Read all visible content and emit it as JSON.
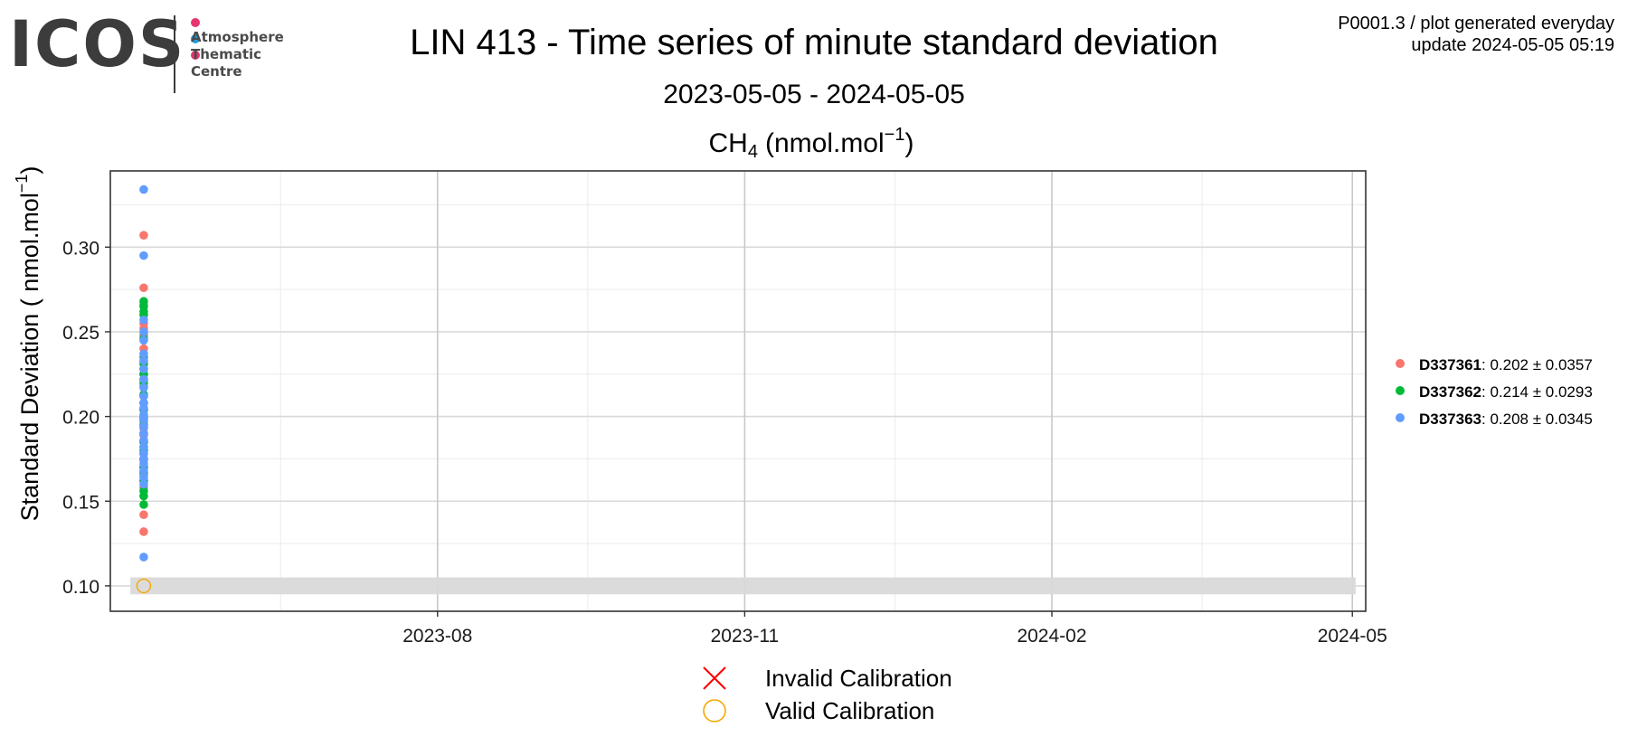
{
  "logo": {
    "wordmark": "ICOS",
    "lines": [
      "Atmosphere",
      "Thematic",
      "Centre"
    ],
    "dot_colors": [
      "#e8336d",
      "#1e9be0",
      "#e8336d"
    ]
  },
  "header": {
    "title": "LIN 413 - Time series of minute standard deviation",
    "subtitle": "2023-05-05 - 2024-05-05",
    "meta_line1": "P0001.3 / plot generated everyday",
    "meta_line2": "update  2024-05-05 05:19"
  },
  "chart_data": {
    "type": "scatter",
    "title_main": "CH",
    "title_sub": "4",
    "title_unit": "(nmol.mol",
    "title_sup": "−1",
    "title_close": ")",
    "ylabel_main": "Standard Deviation ( nmol.mol",
    "ylabel_sup": "−1",
    "ylabel_close": ")",
    "xlim": [
      "2023-04-25",
      "2024-05-05"
    ],
    "ylim": [
      0.085,
      0.345
    ],
    "x_ticks": [
      {
        "date": "2023-08-01",
        "label": "2023-08"
      },
      {
        "date": "2023-11-01",
        "label": "2023-11"
      },
      {
        "date": "2024-02-01",
        "label": "2024-02"
      },
      {
        "date": "2024-05-01",
        "label": "2024-05"
      }
    ],
    "x_minor_ticks": [
      "2023-06-15",
      "2023-09-15",
      "2023-12-16",
      "2024-03-17"
    ],
    "y_ticks": [
      0.1,
      0.15,
      0.2,
      0.25,
      0.3
    ],
    "y_tick_labels": [
      "0.10",
      "0.15",
      "0.20",
      "0.25",
      "0.30"
    ],
    "grid": true,
    "legend_position": "right",
    "band": {
      "ymin": 0.095,
      "ymax": 0.105,
      "xmin": "2023-04-25",
      "xmax": "2024-05-05",
      "color": "#d9d9d9"
    },
    "series": [
      {
        "name": "D337361",
        "stats": ": 0.202 ± 0.0357",
        "color": "#f8766d",
        "x": "2023-05-05",
        "values": [
          0.307,
          0.276,
          0.266,
          0.255,
          0.252,
          0.248,
          0.24,
          0.232,
          0.225,
          0.218,
          0.212,
          0.208,
          0.204,
          0.2,
          0.197,
          0.193,
          0.189,
          0.185,
          0.182,
          0.178,
          0.174,
          0.17,
          0.167,
          0.165,
          0.162,
          0.158,
          0.142,
          0.132
        ]
      },
      {
        "name": "D337362",
        "stats": ": 0.214 ± 0.0293",
        "color": "#00ba38",
        "x": "2023-05-05",
        "values": [
          0.268,
          0.265,
          0.262,
          0.26,
          0.246,
          0.235,
          0.231,
          0.228,
          0.225,
          0.222,
          0.22,
          0.213,
          0.208,
          0.204,
          0.199,
          0.195,
          0.19,
          0.185,
          0.18,
          0.175,
          0.17,
          0.167,
          0.162,
          0.156,
          0.153,
          0.148
        ]
      },
      {
        "name": "D337363",
        "stats": ": 0.208 ± 0.0345",
        "color": "#619cff",
        "x": "2023-05-05",
        "values": [
          0.334,
          0.295,
          0.257,
          0.25,
          0.245,
          0.237,
          0.233,
          0.228,
          0.222,
          0.217,
          0.212,
          0.208,
          0.205,
          0.201,
          0.198,
          0.194,
          0.19,
          0.186,
          0.182,
          0.178,
          0.175,
          0.172,
          0.168,
          0.164,
          0.16,
          0.117
        ]
      }
    ],
    "calibration": [
      {
        "label": "Invalid Calibration",
        "color": "#ff0000",
        "shape": "x",
        "points": []
      },
      {
        "label": "Valid Calibration",
        "color": "#f5a800",
        "shape": "circle",
        "points": [
          {
            "x": "2023-05-05",
            "y": 0.1
          }
        ]
      }
    ]
  }
}
